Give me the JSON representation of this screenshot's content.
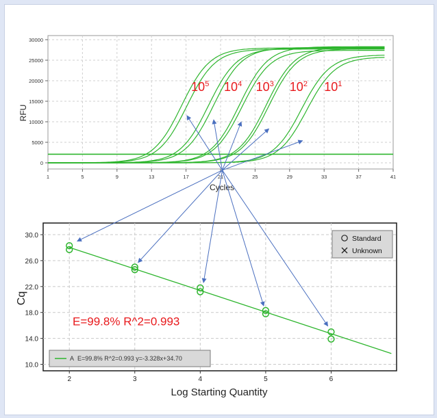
{
  "chart_data": [
    {
      "type": "line",
      "title": "",
      "xlabel": "Cycles",
      "ylabel": "RFU",
      "xlim": [
        1,
        41
      ],
      "ylim": [
        -1500,
        31000
      ],
      "xticks": [
        1,
        5,
        9,
        13,
        17,
        21,
        25,
        29,
        33,
        37,
        41
      ],
      "yticks": [
        0,
        5000,
        10000,
        15000,
        20000,
        25000,
        30000
      ],
      "grid": true,
      "curve_color": "#2db52d",
      "annotation_color": "#e8191c",
      "arrow_color": "#4a6fbf",
      "baseline": 2100,
      "series": [
        {
          "label_base": "10",
          "label_exp": "5",
          "midpoint": 16.5,
          "plateau": 28000
        },
        {
          "label_base": "10",
          "label_exp": "5",
          "midpoint": 17.1,
          "plateau": 27700
        },
        {
          "label_base": "10",
          "label_exp": "4",
          "midpoint": 19.6,
          "plateau": 27900
        },
        {
          "label_base": "10",
          "label_exp": "4",
          "midpoint": 20.2,
          "plateau": 28100
        },
        {
          "label_base": "10",
          "label_exp": "3",
          "midpoint": 23.2,
          "plateau": 28300
        },
        {
          "label_base": "10",
          "label_exp": "3",
          "midpoint": 23.5,
          "plateau": 27400
        },
        {
          "label_base": "10",
          "label_exp": "2",
          "midpoint": 26.3,
          "plateau": 28200
        },
        {
          "label_base": "10",
          "label_exp": "2",
          "midpoint": 26.6,
          "plateau": 27800
        },
        {
          "label_base": "10",
          "label_exp": "1",
          "midpoint": 30.4,
          "plateau": 26300
        },
        {
          "label_base": "10",
          "label_exp": "1",
          "midpoint": 31.0,
          "plateau": 25800
        }
      ],
      "annotations": [
        {
          "base": "10",
          "exp": "5",
          "x": 17.6,
          "y": 17500
        },
        {
          "base": "10",
          "exp": "4",
          "x": 21.4,
          "y": 17500
        },
        {
          "base": "10",
          "exp": "3",
          "x": 25.1,
          "y": 17500
        },
        {
          "base": "10",
          "exp": "2",
          "x": 29.0,
          "y": 17500
        },
        {
          "base": "10",
          "exp": "1",
          "x": 33.0,
          "y": 17500
        }
      ],
      "arrow_origin": {
        "x": 21.2,
        "y": -1800
      },
      "arrow_targets": [
        {
          "x": 17.1,
          "y": 11500
        },
        {
          "x": 20.2,
          "y": 10500
        },
        {
          "x": 23.4,
          "y": 10000
        },
        {
          "x": 26.6,
          "y": 8300
        },
        {
          "x": 30.5,
          "y": 5400
        }
      ]
    },
    {
      "type": "scatter",
      "title": "",
      "xlabel": "Log Starting Quantity",
      "ylabel": "Cq",
      "xlim": [
        1.6,
        7.0
      ],
      "ylim": [
        9.0,
        31.8
      ],
      "xticks": [
        2,
        3,
        4,
        5,
        6
      ],
      "yticks": [
        10.0,
        14.0,
        18.0,
        22.0,
        26.0,
        30.0
      ],
      "grid": true,
      "marker_color": "#2db52d",
      "points": [
        {
          "x": 2,
          "y": 28.3
        },
        {
          "x": 2,
          "y": 27.7
        },
        {
          "x": 3,
          "y": 25.0
        },
        {
          "x": 3,
          "y": 24.6
        },
        {
          "x": 4,
          "y": 21.8
        },
        {
          "x": 4,
          "y": 21.2
        },
        {
          "x": 5,
          "y": 18.3
        },
        {
          "x": 5,
          "y": 17.8
        },
        {
          "x": 6,
          "y": 15.0
        },
        {
          "x": 6,
          "y": 13.9
        }
      ],
      "fit": {
        "slope": -3.328,
        "intercept": 34.7,
        "x_start": 2,
        "x_end": 6.92
      },
      "efficiency_text": "E=99.8%  R^2=0.993",
      "efficiency_pos": {
        "x": 2.05,
        "y": 16.0
      },
      "legend": {
        "position": "top-right",
        "standard": "Standard",
        "unknown": "Unknown"
      },
      "fit_legend": {
        "marker": "A",
        "text": "E=99.8% R^2=0.993 y=-3.328x+34.70",
        "position": "bottom-left"
      },
      "arrow_targets": [
        {
          "x": 2.12,
          "y": 29.0
        },
        {
          "x": 3.05,
          "y": 25.7
        },
        {
          "x": 4.05,
          "y": 22.6
        },
        {
          "x": 4.97,
          "y": 19.0
        },
        {
          "x": 5.95,
          "y": 15.9
        }
      ]
    }
  ]
}
